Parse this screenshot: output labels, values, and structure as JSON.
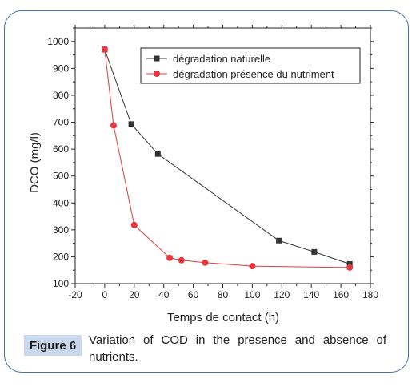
{
  "chart_data": {
    "type": "line",
    "xlabel": "Temps de contact (h)",
    "ylabel": "DCO (mg/l)",
    "xlim": [
      -20,
      180
    ],
    "ylim": [
      100,
      1050
    ],
    "xticks": [
      -20,
      0,
      20,
      40,
      60,
      80,
      100,
      120,
      140,
      160,
      180
    ],
    "yticks": [
      100,
      200,
      300,
      400,
      500,
      600,
      700,
      800,
      900,
      1000
    ],
    "legend_position": "top-right",
    "grid": false,
    "series": [
      {
        "name": "dégradation naturelle",
        "color": "#333333",
        "marker": "square",
        "x": [
          0,
          18,
          36,
          118,
          142,
          166
        ],
        "y": [
          970,
          693,
          582,
          260,
          218,
          173
        ]
      },
      {
        "name": "dégradation présence du nutriment",
        "color": "#e8383d",
        "marker": "circle",
        "x": [
          0,
          6,
          20,
          44,
          52,
          68,
          100,
          166
        ],
        "y": [
          970,
          688,
          318,
          196,
          187,
          178,
          165,
          160
        ]
      }
    ]
  },
  "caption": {
    "tag": "Figure 6",
    "text": "Variation of COD in the presence and absence of nutrients."
  }
}
